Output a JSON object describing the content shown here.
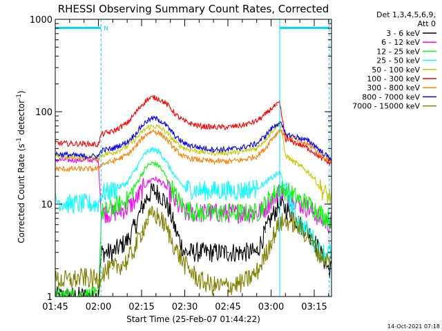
{
  "chart_data": {
    "type": "line",
    "title": "RHESSI Observing Summary Count Rates, Corrected",
    "ylabel_parts": {
      "main": "Corrected Count Rate (s",
      "sup1": "-1",
      "mid": " detector",
      "sup2": "-1",
      "end": ")"
    },
    "xlabel": "Start Time (25-Feb-07 01:44:22)",
    "footer": "14-Oct-2021 07:18",
    "legend_header": [
      "Det 1,3,4,5,6,9,",
      "Att 0"
    ],
    "y_scale": "log",
    "ylim": [
      1,
      1000
    ],
    "y_ticks": [
      {
        "value": 1,
        "label": "1"
      },
      {
        "value": 10,
        "label": "10"
      },
      {
        "value": 100,
        "label": "100"
      },
      {
        "value": 1000,
        "label": "1000"
      }
    ],
    "x_range_min": [
      105,
      201
    ],
    "x_ticks": [
      {
        "value": 105,
        "label": "01:45"
      },
      {
        "value": 120,
        "label": "02:00"
      },
      {
        "value": 135,
        "label": "02:15"
      },
      {
        "value": 150,
        "label": "02:30"
      },
      {
        "value": 165,
        "label": "02:45"
      },
      {
        "value": 180,
        "label": "03:00"
      },
      {
        "value": 195,
        "label": "03:15"
      }
    ],
    "night_marker": "N",
    "vertical_lines": [
      {
        "x": 120.9,
        "style": "dashed"
      },
      {
        "x": 183.0,
        "style": "solid"
      },
      {
        "x": 200.2,
        "style": "dashed"
      }
    ],
    "top_bars": [
      {
        "from": 105,
        "to": 120.9
      },
      {
        "from": 183.0,
        "to": 200.2
      }
    ],
    "x": [
      105,
      110,
      115,
      120,
      121,
      125,
      130,
      133,
      135,
      137,
      139,
      141,
      143,
      145,
      147,
      150,
      155,
      160,
      165,
      170,
      175,
      178,
      180,
      182,
      183,
      185,
      187,
      190,
      193,
      195,
      197,
      200
    ],
    "series": [
      {
        "name": "3 - 6 keV",
        "color": "#000000",
        "values": [
          1,
          1,
          1,
          1,
          3,
          3,
          4,
          6,
          9,
          12,
          14,
          13,
          11,
          8,
          5,
          3,
          3,
          3,
          3,
          3,
          3,
          5,
          7,
          9,
          10,
          9,
          8,
          6,
          5,
          4,
          3,
          2
        ]
      },
      {
        "name": "6 - 12 keV",
        "color": "#ff00ff",
        "values": [
          30,
          30,
          30,
          30,
          8,
          8,
          9,
          11,
          14,
          17,
          19,
          18,
          16,
          13,
          10,
          8,
          8,
          8,
          8,
          8,
          8,
          9,
          11,
          13,
          14,
          13,
          12,
          10,
          9,
          8,
          7,
          6
        ]
      },
      {
        "name": "12 - 25 keV",
        "color": "#00ff00",
        "values": [
          1,
          1,
          1,
          1,
          8,
          9,
          11,
          16,
          21,
          26,
          28,
          26,
          21,
          16,
          12,
          9,
          8,
          8,
          8,
          8,
          8,
          10,
          12,
          14,
          15,
          14,
          13,
          11,
          10,
          9,
          8,
          7
        ]
      },
      {
        "name": "25 - 50 keV",
        "color": "#00ffff",
        "values": [
          11,
          10,
          10,
          10,
          13,
          14,
          17,
          24,
          31,
          37,
          39,
          37,
          31,
          24,
          19,
          15,
          14,
          14,
          14,
          14,
          15,
          17,
          19,
          21,
          22,
          15,
          10,
          6,
          5,
          4,
          3,
          3
        ]
      },
      {
        "name": "50 - 100 keV",
        "color": "#c8c800",
        "values": [
          33,
          32,
          32,
          31,
          34,
          36,
          42,
          51,
          60,
          67,
          70,
          68,
          62,
          54,
          46,
          40,
          37,
          36,
          36,
          37,
          40,
          50,
          60,
          70,
          78,
          34,
          30,
          26,
          22,
          19,
          15,
          12
        ]
      },
      {
        "name": "100 - 300 keV",
        "color": "#ff0000",
        "values": [
          46,
          45,
          45,
          44,
          57,
          61,
          75,
          98,
          118,
          136,
          143,
          138,
          126,
          110,
          92,
          78,
          70,
          68,
          68,
          71,
          79,
          93,
          108,
          118,
          125,
          50,
          48,
          44,
          40,
          36,
          32,
          28
        ]
      },
      {
        "name": "300 - 800 keV",
        "color": "#ff7f00",
        "values": [
          24,
          24,
          24,
          24,
          27,
          29,
          34,
          42,
          51,
          58,
          62,
          59,
          53,
          45,
          38,
          32,
          30,
          29,
          29,
          30,
          33,
          40,
          50,
          58,
          64,
          55,
          52,
          48,
          44,
          40,
          35,
          30
        ]
      },
      {
        "name": "800 - 7000 keV",
        "color": "#0000ff",
        "values": [
          35,
          34,
          33,
          33,
          38,
          40,
          47,
          58,
          70,
          80,
          85,
          82,
          74,
          63,
          53,
          45,
          41,
          39,
          39,
          41,
          45,
          55,
          65,
          73,
          78,
          57,
          55,
          52,
          48,
          44,
          38,
          32
        ]
      },
      {
        "name": "7000 - 15000 keV",
        "color": "#808000",
        "values": [
          1.5,
          1.5,
          1.6,
          1.5,
          1.8,
          2.0,
          2.4,
          3.5,
          5.0,
          6.8,
          7.8,
          7.2,
          6.0,
          4.4,
          3.2,
          2.2,
          1.5,
          1.3,
          1.3,
          1.4,
          1.8,
          2.8,
          4.0,
          5.4,
          6.2,
          6.5,
          6.5,
          5.5,
          4.5,
          3.5,
          2.8,
          2.4
        ]
      }
    ]
  }
}
